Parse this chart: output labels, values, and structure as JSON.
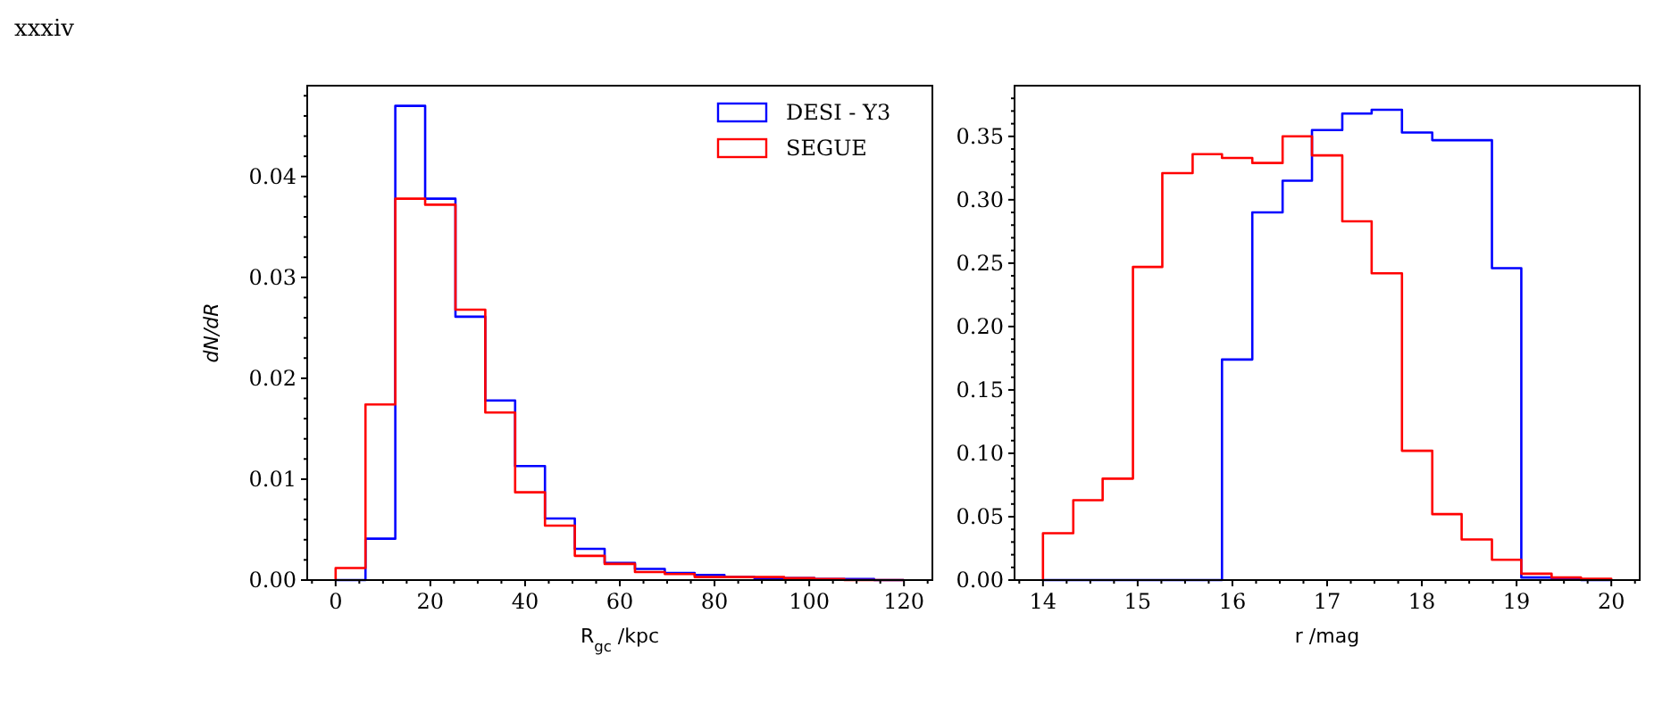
{
  "chart_data": [
    {
      "type": "histogram",
      "xlabel": "R$_{gc}$ /kpc",
      "ylabel": "dN/dR",
      "annotations": [
        "xxxiv"
      ],
      "legend": "top right",
      "grid": false,
      "bins": [
        0,
        6.3,
        12.6,
        18.9,
        25.3,
        31.6,
        37.9,
        44.2,
        50.5,
        56.8,
        63.2,
        69.5,
        75.8,
        82.1,
        88.4,
        94.7,
        101.1,
        107.4,
        113.7,
        120
      ],
      "series": [
        {
          "name": "DESI - Y3",
          "color": "#0000ff",
          "values": [
            0,
            0.0041,
            0.047,
            0.0378,
            0.0261,
            0.0178,
            0.0113,
            0.0061,
            0.0031,
            0.0017,
            0.0011,
            0.0007,
            0.0005,
            0.0003,
            0.0002,
            0.0002,
            0.0001,
            0.0001,
            0
          ]
        },
        {
          "name": "SEGUE",
          "color": "#ff0000",
          "values": [
            0.0012,
            0.0174,
            0.0378,
            0.0372,
            0.0268,
            0.0166,
            0.0087,
            0.0054,
            0.0024,
            0.0016,
            0.0008,
            0.0006,
            0.0003,
            0.0003,
            0.0003,
            0.0002,
            0.0001,
            0,
            0
          ]
        }
      ],
      "xlim": [
        -6,
        126
      ],
      "ylim": [
        0,
        0.049
      ],
      "xticks": [
        0,
        20,
        40,
        60,
        80,
        100,
        120,
        {
          "value": -5,
          "label": null
        },
        {
          "value": 5,
          "label": null
        },
        {
          "value": 10,
          "label": null
        },
        {
          "value": 15,
          "label": null
        },
        {
          "value": 25,
          "label": null
        },
        {
          "value": 30,
          "label": null
        },
        {
          "value": 35,
          "label": null
        },
        {
          "value": 45,
          "label": null
        },
        {
          "value": 50,
          "label": null
        },
        {
          "value": 55,
          "label": null
        },
        {
          "value": 65,
          "label": null
        },
        {
          "value": 70,
          "label": null
        },
        {
          "value": 75,
          "label": null
        },
        {
          "value": 85,
          "label": null
        },
        {
          "value": 90,
          "label": null
        },
        {
          "value": 95,
          "label": null
        },
        {
          "value": 105,
          "label": null
        },
        {
          "value": 110,
          "label": null
        },
        {
          "value": 115,
          "label": null
        },
        {
          "value": 125,
          "label": null
        }
      ],
      "yticks": [
        {
          "value": 0,
          "label": "0.00"
        },
        {
          "value": 0.01,
          "label": "0.01"
        },
        {
          "value": 0.02,
          "label": "0.02"
        },
        {
          "value": 0.03,
          "label": "0.03"
        },
        {
          "value": 0.04,
          "label": "0.04"
        },
        {
          "value": 0.002,
          "label": null
        },
        {
          "value": 0.004,
          "label": null
        },
        {
          "value": 0.006,
          "label": null
        },
        {
          "value": 0.008,
          "label": null
        },
        {
          "value": 0.012,
          "label": null
        },
        {
          "value": 0.014,
          "label": null
        },
        {
          "value": 0.016,
          "label": null
        },
        {
          "value": 0.018,
          "label": null
        },
        {
          "value": 0.022,
          "label": null
        },
        {
          "value": 0.024,
          "label": null
        },
        {
          "value": 0.026,
          "label": null
        },
        {
          "value": 0.028,
          "label": null
        },
        {
          "value": 0.032,
          "label": null
        },
        {
          "value": 0.034,
          "label": null
        },
        {
          "value": 0.036,
          "label": null
        },
        {
          "value": 0.038,
          "label": null
        },
        {
          "value": 0.042,
          "label": null
        },
        {
          "value": 0.044,
          "label": null
        },
        {
          "value": 0.046,
          "label": null
        },
        {
          "value": 0.048,
          "label": null
        }
      ]
    },
    {
      "type": "histogram",
      "xlabel": "r /mag",
      "legend": false,
      "grid": false,
      "bins": [
        14,
        14.32,
        14.63,
        14.95,
        15.26,
        15.58,
        15.89,
        16.21,
        16.53,
        16.84,
        17.16,
        17.47,
        17.79,
        18.11,
        18.42,
        18.74,
        19.05,
        19.37,
        19.68,
        20
      ],
      "series": [
        {
          "color": "#0000ff",
          "values": [
            0,
            0,
            0,
            0,
            0,
            0,
            0.174,
            0.29,
            0.315,
            0.355,
            0.368,
            0.371,
            0.353,
            0.347,
            0.347,
            0.246,
            0.002,
            0.001,
            0
          ]
        },
        {
          "color": "#ff0000",
          "values": [
            0.037,
            0.063,
            0.08,
            0.247,
            0.321,
            0.336,
            0.333,
            0.329,
            0.35,
            0.335,
            0.283,
            0.242,
            0.102,
            0.052,
            0.032,
            0.016,
            0.005,
            0.002,
            0.001
          ]
        }
      ],
      "xlim": [
        13.7,
        20.3
      ],
      "ylim": [
        0,
        0.39
      ],
      "xticks": [
        14,
        15,
        16,
        17,
        18,
        19,
        20,
        {
          "value": 13.75,
          "label": null
        },
        {
          "value": 14.25,
          "label": null
        },
        {
          "value": 14.5,
          "label": null
        },
        {
          "value": 14.75,
          "label": null
        },
        {
          "value": 15.25,
          "label": null
        },
        {
          "value": 15.5,
          "label": null
        },
        {
          "value": 15.75,
          "label": null
        },
        {
          "value": 16.25,
          "label": null
        },
        {
          "value": 16.5,
          "label": null
        },
        {
          "value": 16.75,
          "label": null
        },
        {
          "value": 17.25,
          "label": null
        },
        {
          "value": 17.5,
          "label": null
        },
        {
          "value": 17.75,
          "label": null
        },
        {
          "value": 18.25,
          "label": null
        },
        {
          "value": 18.5,
          "label": null
        },
        {
          "value": 18.75,
          "label": null
        },
        {
          "value": 19.25,
          "label": null
        },
        {
          "value": 19.5,
          "label": null
        },
        {
          "value": 19.75,
          "label": null
        },
        {
          "value": 20.25,
          "label": null
        }
      ],
      "yticks": [
        {
          "value": 0,
          "label": "0.00"
        },
        {
          "value": 0.05,
          "label": "0.05"
        },
        {
          "value": 0.1,
          "label": "0.10"
        },
        {
          "value": 0.15,
          "label": "0.15"
        },
        {
          "value": 0.2,
          "label": "0.20"
        },
        {
          "value": 0.25,
          "label": "0.25"
        },
        {
          "value": 0.3,
          "label": "0.30"
        },
        {
          "value": 0.35,
          "label": "0.35"
        },
        {
          "value": 0.01,
          "label": null
        },
        {
          "value": 0.02,
          "label": null
        },
        {
          "value": 0.03,
          "label": null
        },
        {
          "value": 0.04,
          "label": null
        },
        {
          "value": 0.06,
          "label": null
        },
        {
          "value": 0.07,
          "label": null
        },
        {
          "value": 0.08,
          "label": null
        },
        {
          "value": 0.09,
          "label": null
        },
        {
          "value": 0.11,
          "label": null
        },
        {
          "value": 0.12,
          "label": null
        },
        {
          "value": 0.13,
          "label": null
        },
        {
          "value": 0.14,
          "label": null
        },
        {
          "value": 0.16,
          "label": null
        },
        {
          "value": 0.17,
          "label": null
        },
        {
          "value": 0.18,
          "label": null
        },
        {
          "value": 0.19,
          "label": null
        },
        {
          "value": 0.21,
          "label": null
        },
        {
          "value": 0.22,
          "label": null
        },
        {
          "value": 0.23,
          "label": null
        },
        {
          "value": 0.24,
          "label": null
        },
        {
          "value": 0.26,
          "label": null
        },
        {
          "value": 0.27,
          "label": null
        },
        {
          "value": 0.28,
          "label": null
        },
        {
          "value": 0.29,
          "label": null
        },
        {
          "value": 0.31,
          "label": null
        },
        {
          "value": 0.32,
          "label": null
        },
        {
          "value": 0.33,
          "label": null
        },
        {
          "value": 0.34,
          "label": null
        },
        {
          "value": 0.36,
          "label": null
        },
        {
          "value": 0.37,
          "label": null
        },
        {
          "value": 0.38,
          "label": null
        }
      ]
    }
  ]
}
